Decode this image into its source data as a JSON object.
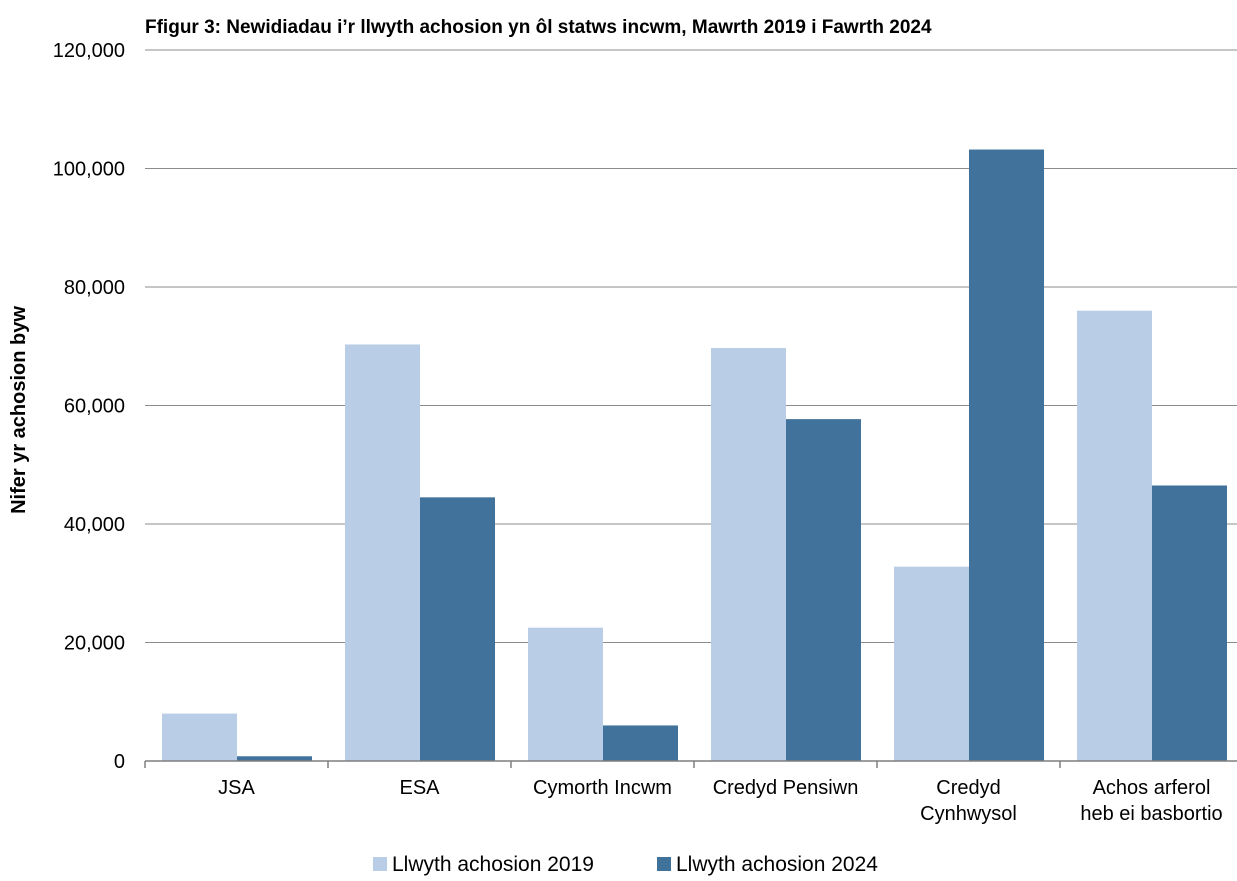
{
  "chart_data": {
    "type": "bar",
    "title": "Ffigur 3: Newidiadau i’r llwyth achosion yn ôl statws incwm, Mawrth 2019 i Fawrth 2024",
    "ylabel": "Nifer yr achosion byw",
    "xlabel": "",
    "ylim": [
      0,
      120000
    ],
    "yticks": [
      0,
      20000,
      40000,
      60000,
      80000,
      100000,
      120000
    ],
    "ytick_labels": [
      "0",
      "20,000",
      "40,000",
      "60,000",
      "80,000",
      "100,000",
      "120,000"
    ],
    "categories": [
      [
        "JSA"
      ],
      [
        "ESA"
      ],
      [
        "Cymorth Incwm"
      ],
      [
        "Credyd Pensiwn"
      ],
      [
        "Credyd",
        "Cynhwysol"
      ],
      [
        "Achos arferol",
        "heb ei basbortio"
      ]
    ],
    "series": [
      {
        "name": "Llwyth achosion 2019",
        "color": "#b9cde6",
        "values": [
          8000,
          70300,
          22500,
          69700,
          32800,
          76000
        ]
      },
      {
        "name": "Llwyth achosion 2024",
        "color": "#41729b",
        "values": [
          800,
          44500,
          6000,
          57700,
          103200,
          46500
        ]
      }
    ],
    "grid": true,
    "legend_position": "bottom"
  }
}
